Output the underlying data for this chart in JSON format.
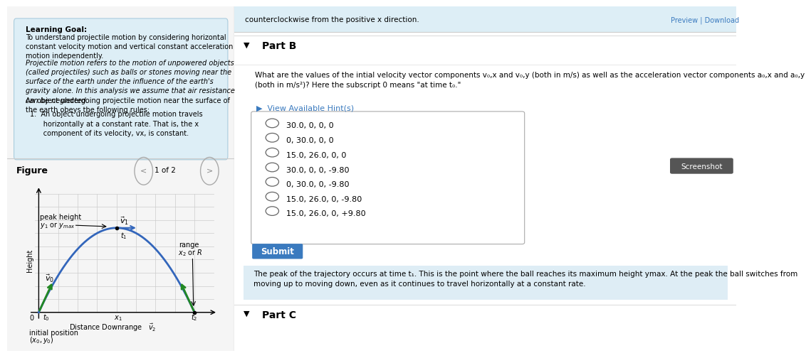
{
  "left_panel": {
    "bg_color": "#e8f4f8",
    "learning_goal_title": "Learning Goal:",
    "learning_goal_body": "To understand projectile motion by considering horizontal\nconstant velocity motion and vertical constant acceleration\nmotion independently.",
    "projectile_def": "Projectile motion refers to the motion of unpowered objects\n(called projectiles) such as balls or stones moving near the\nsurface of the earth under the influence of the earth's\ngravity alone. In this analysis we assume that air resistance\ncan be neglected.",
    "rules_intro": "An object undergoing projectile motion near the surface of\nthe earth obeys the following rules:",
    "rule1": "1.  An object undergoing projectile motion travels\n      horizontally at a constant rate. That is, the x\n      component of its velocity, vx, is constant.",
    "figure_label": "Figure",
    "page_label": "1 of 2"
  },
  "right_panel": {
    "bg_color": "#ffffff",
    "top_strip_color": "#e8f4f8",
    "top_strip_text": "counterclockwise from the positive x direction.",
    "part_b_label": "Part B",
    "question_text": "What are the values of the intial velocity vector components v₀,x and v₀,y (both in m/s) as well as the acceleration vector components a₀,x and a₀,y\n(both in m/s²)? Here the subscript 0 means \"at time t₀.\"",
    "hint_text": "View Available Hint(s)",
    "choices": [
      "30.0, 0, 0, 0",
      "0, 30.0, 0, 0",
      "15.0, 26.0, 0, 0",
      "30.0, 0, 0, -9.80",
      "0, 30.0, 0, -9.80",
      "15.0, 26.0, 0, -9.80",
      "15.0, 26.0, 0, +9.80"
    ],
    "submit_label": "Submit",
    "submit_bg": "#3a7abf",
    "info_box_color": "#deedf5",
    "info_text": "The peak of the trajectory occurs at time t₁. This is the point where the ball reaches its maximum height ymax. At the peak the ball switches from\nmoving up to moving down, even as it continues to travel horizontally at a constant rate.",
    "part_c_label": "Part C",
    "screenshot_label": "Screenshot",
    "screenshot_bg": "#555555"
  }
}
